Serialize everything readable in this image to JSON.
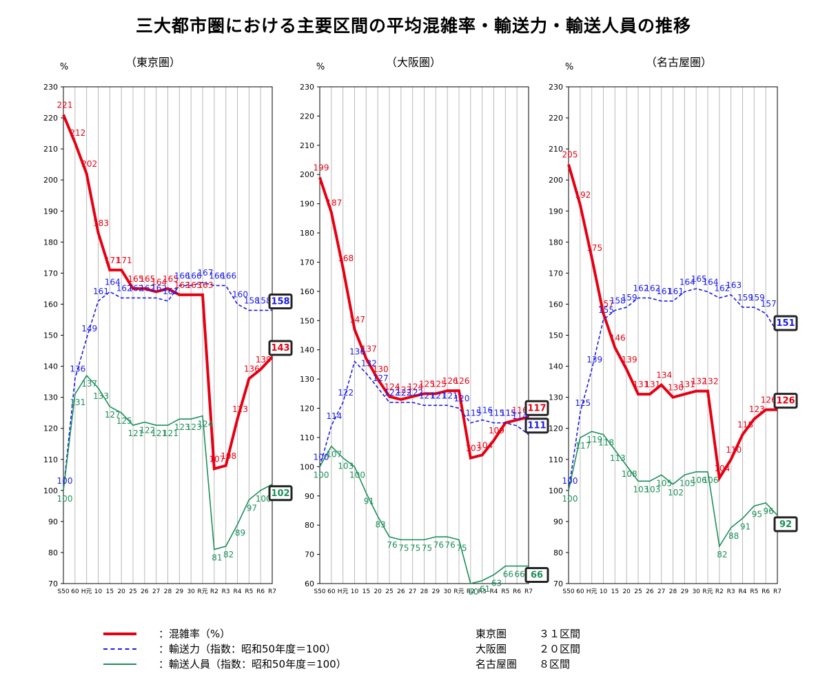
{
  "title": "三大都市圏における主要区間の平均混雑率・輸送力・輸送人員の推移",
  "colors": {
    "congestion": "#e60012",
    "capacity": "#1a1ae6",
    "passengers": "#1a8f5a"
  },
  "chart_data": [
    {
      "type": "line",
      "title": "（東京圏）",
      "ylabel": "%",
      "ylim": [
        70,
        230
      ],
      "yticks": [
        70,
        80,
        90,
        100,
        110,
        120,
        130,
        140,
        150,
        160,
        170,
        180,
        190,
        200,
        210,
        220,
        230
      ],
      "categories": [
        "S50",
        "60",
        "H元",
        "10",
        "15",
        "20",
        "25",
        "26",
        "27",
        "28",
        "29",
        "30",
        "R元",
        "R2",
        "R3",
        "R4",
        "R5",
        "R6",
        "R7"
      ],
      "tick_labels": [
        "S50",
        "60",
        "H元",
        "10",
        "15",
        "20",
        "25",
        "26",
        "27",
        "28",
        "29",
        "30",
        "R元",
        "R2",
        "R3",
        "R4",
        "R5",
        "R6",
        "R7"
      ],
      "series": [
        {
          "key": "congestion",
          "values": [
            221,
            212,
            202,
            183,
            171,
            171,
            165,
            165,
            164,
            165,
            163,
            163,
            163,
            107,
            108,
            123,
            136,
            139,
            143
          ]
        },
        {
          "key": "capacity",
          "values": [
            100,
            136,
            149,
            161,
            164,
            162,
            162,
            162,
            162,
            161,
            166,
            166,
            167,
            166,
            166,
            160,
            158,
            158,
            158
          ]
        },
        {
          "key": "passengers",
          "values": [
            100,
            131,
            137,
            133,
            127,
            125,
            121,
            122,
            121,
            121,
            123,
            123,
            124,
            81,
            82,
            89,
            97,
            100,
            102
          ]
        }
      ]
    },
    {
      "type": "line",
      "title": "（大阪圏）",
      "ylabel": "%",
      "ylim": [
        60,
        230
      ],
      "yticks": [
        60,
        70,
        80,
        90,
        100,
        110,
        120,
        130,
        140,
        150,
        160,
        170,
        180,
        190,
        200,
        210,
        220,
        230
      ],
      "categories": [
        "S50",
        "60",
        "H元",
        "10",
        "15",
        "20",
        "25",
        "26",
        "27",
        "28",
        "29",
        "30",
        "R元",
        "R2",
        "R3",
        "R4",
        "R5",
        "R6",
        "R7"
      ],
      "tick_labels": [
        "S50",
        "60",
        "H元",
        "10",
        "15",
        "20",
        "25",
        "26",
        "27",
        "28",
        "29",
        "30",
        "R元",
        "R2",
        "R3",
        "R4",
        "R5",
        "R6",
        "R7"
      ],
      "series": [
        {
          "key": "congestion",
          "values": [
            199,
            187,
            168,
            147,
            137,
            130,
            124,
            123,
            124,
            125,
            125,
            126,
            126,
            103,
            104,
            109,
            115,
            116,
            117
          ]
        },
        {
          "key": "capacity",
          "values": [
            100,
            114,
            122,
            136,
            132,
            127,
            122,
            122,
            122,
            121,
            121,
            121,
            120,
            115,
            116,
            115,
            115,
            114,
            111
          ]
        },
        {
          "key": "passengers",
          "values": [
            100,
            107,
            103,
            100,
            91,
            83,
            76,
            75,
            75,
            75,
            76,
            76,
            75,
            60,
            61,
            63,
            66,
            66,
            66
          ]
        }
      ]
    },
    {
      "type": "line",
      "title": "（名古屋圏）",
      "ylabel": "%",
      "ylim": [
        70,
        230
      ],
      "yticks": [
        70,
        80,
        90,
        100,
        110,
        120,
        130,
        140,
        150,
        160,
        170,
        180,
        190,
        200,
        210,
        220,
        230
      ],
      "categories": [
        "S50",
        "60",
        "H元",
        "10",
        "15",
        "20",
        "25",
        "26",
        "27",
        "28",
        "29",
        "30",
        "R元",
        "R2",
        "R3",
        "R4",
        "R5",
        "R6",
        "R7"
      ],
      "tick_labels": [
        "S50",
        "60",
        "H元",
        "10",
        "15",
        "20",
        "25",
        "26",
        "27",
        "28",
        "29",
        "30",
        "R元",
        "R2",
        "R3",
        "R4",
        "R5",
        "R6",
        "R7"
      ],
      "series": [
        {
          "key": "congestion",
          "values": [
            205,
            192,
            175,
            157,
            146,
            139,
            131,
            131,
            134,
            130,
            131,
            132,
            132,
            104,
            110,
            118,
            123,
            126,
            126
          ]
        },
        {
          "key": "capacity",
          "values": [
            100,
            125,
            139,
            155,
            158,
            159,
            162,
            162,
            161,
            161,
            164,
            165,
            164,
            162,
            163,
            159,
            159,
            157,
            151
          ]
        },
        {
          "key": "passengers",
          "values": [
            100,
            117,
            119,
            118,
            113,
            108,
            103,
            103,
            105,
            102,
            105,
            106,
            106,
            82,
            88,
            91,
            95,
            96,
            92
          ]
        }
      ]
    }
  ],
  "legend": [
    {
      "key": "congestion",
      "label": "：混雑率（%）"
    },
    {
      "key": "capacity",
      "label": "：輸送力（指数：昭和50年度＝100）"
    },
    {
      "key": "passengers",
      "label": "：輸送人員（指数：昭和50年度＝100）"
    }
  ],
  "sections": [
    {
      "name": "東京圏",
      "count": "３１区間"
    },
    {
      "name": "大阪圏",
      "count": "２０区間"
    },
    {
      "name": "名古屋圏",
      "count": "８区間"
    }
  ]
}
